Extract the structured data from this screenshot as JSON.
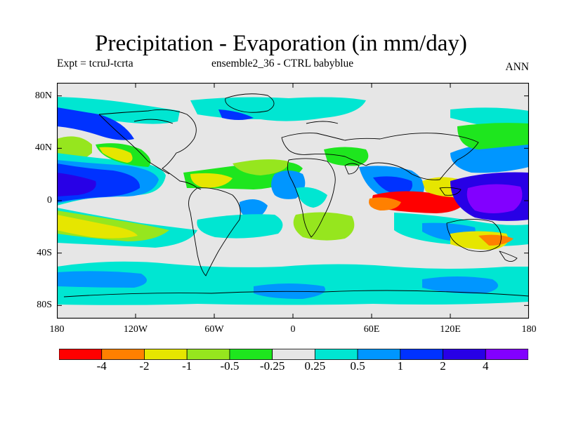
{
  "header": {
    "title": "Precipitation - Evaporation (in mm/day)",
    "experiment": "Expt = tcruJ-tcrta",
    "ensemble": "ensemble2_36 - CTRL babyblue",
    "season": "ANN"
  },
  "axes": {
    "lat_labels": [
      "80N",
      "40N",
      "0",
      "40S",
      "80S"
    ],
    "lon_labels": [
      "180",
      "120W",
      "60W",
      "0",
      "60E",
      "120E",
      "180"
    ]
  },
  "colorbar": {
    "labels": [
      "-4",
      "-2",
      "-1",
      "-0.5",
      "-0.25",
      "0.25",
      "0.5",
      "1",
      "2",
      "4"
    ],
    "colors": [
      "#ff0000",
      "#ff8000",
      "#e6e600",
      "#96e61e",
      "#1ee61e",
      "#e6e6e6",
      "#00e6d2",
      "#0096ff",
      "#0032ff",
      "#2800e6",
      "#8200ff"
    ]
  },
  "map_data": {
    "type": "global filled contour map",
    "projection": "cylindrical equidistant",
    "lon_range": [
      -180,
      180
    ],
    "lat_range": [
      -90,
      90
    ],
    "lat_ticks": [
      80,
      40,
      0,
      -40,
      -80
    ],
    "lon_ticks": [
      -180,
      -120,
      -60,
      0,
      60,
      120,
      180
    ],
    "levels": [
      -4,
      -2,
      -1,
      -0.5,
      -0.25,
      0.25,
      0.5,
      1,
      2,
      4
    ]
  }
}
